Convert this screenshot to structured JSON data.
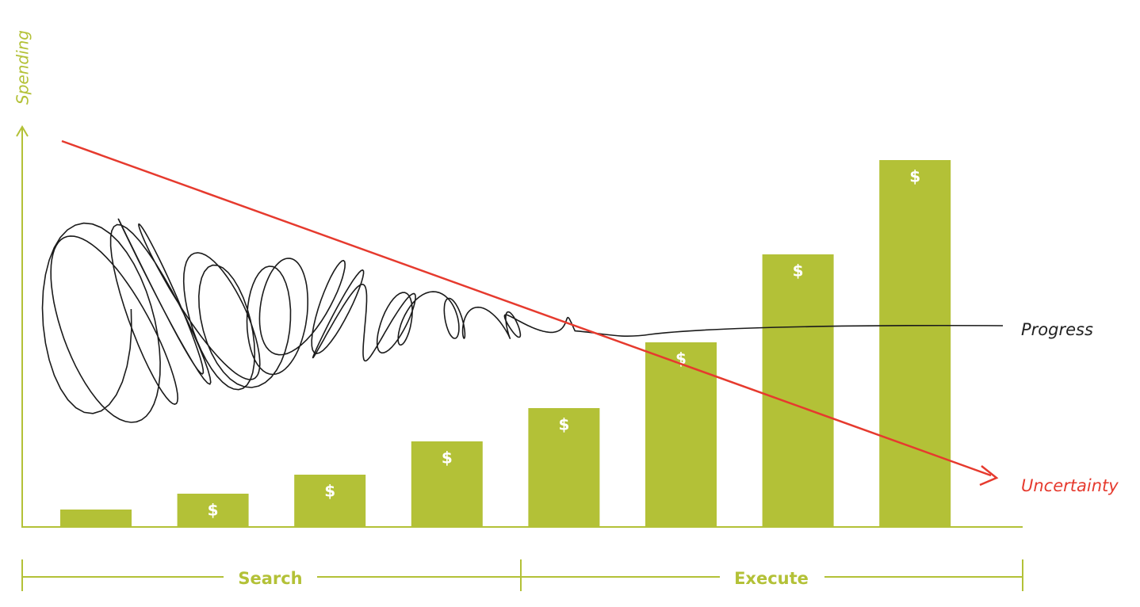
{
  "chart_data": {
    "type": "bar",
    "y_label": "Spending",
    "categories": [
      null,
      null,
      null,
      null,
      null,
      null,
      null,
      null
    ],
    "values": [
      4.4,
      8.4,
      13.2,
      21.6,
      30,
      46.6,
      68.8,
      92.6
    ],
    "bar_labels": [
      null,
      "$",
      "$",
      "$",
      "$",
      "$",
      "$",
      "$"
    ],
    "color": "#b3c137",
    "ylim": [
      0,
      100
    ],
    "phases": [
      {
        "label": "Search"
      },
      {
        "label": "Execute"
      }
    ],
    "progress_label": "Progress",
    "uncertainty_label": "Uncertainty",
    "uncertainty_color": "#e63a2e"
  }
}
